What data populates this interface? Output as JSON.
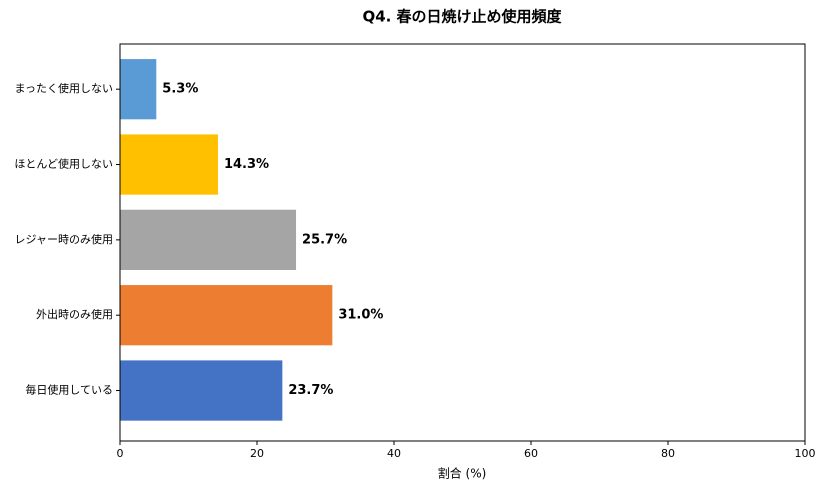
{
  "chart_data": {
    "type": "barh",
    "title": "Q4. 春の日焼け止め使用頻度",
    "xlabel": "割合 (%)",
    "categories": [
      "まったく使用しない",
      "ほとんど使用しない",
      "レジャー時のみ使用",
      "外出時のみ使用",
      "毎日使用している"
    ],
    "values": [
      5.3,
      14.3,
      25.7,
      31.0,
      23.7
    ],
    "value_labels": [
      "5.3%",
      "14.3%",
      "25.7%",
      "31.0%",
      "23.7%"
    ],
    "colors": [
      "#5b9bd5",
      "#ffc000",
      "#a5a5a5",
      "#ed7d31",
      "#4472c4"
    ],
    "xlim": [
      0,
      100
    ],
    "xticks": [
      0,
      20,
      40,
      60,
      80,
      100
    ]
  }
}
